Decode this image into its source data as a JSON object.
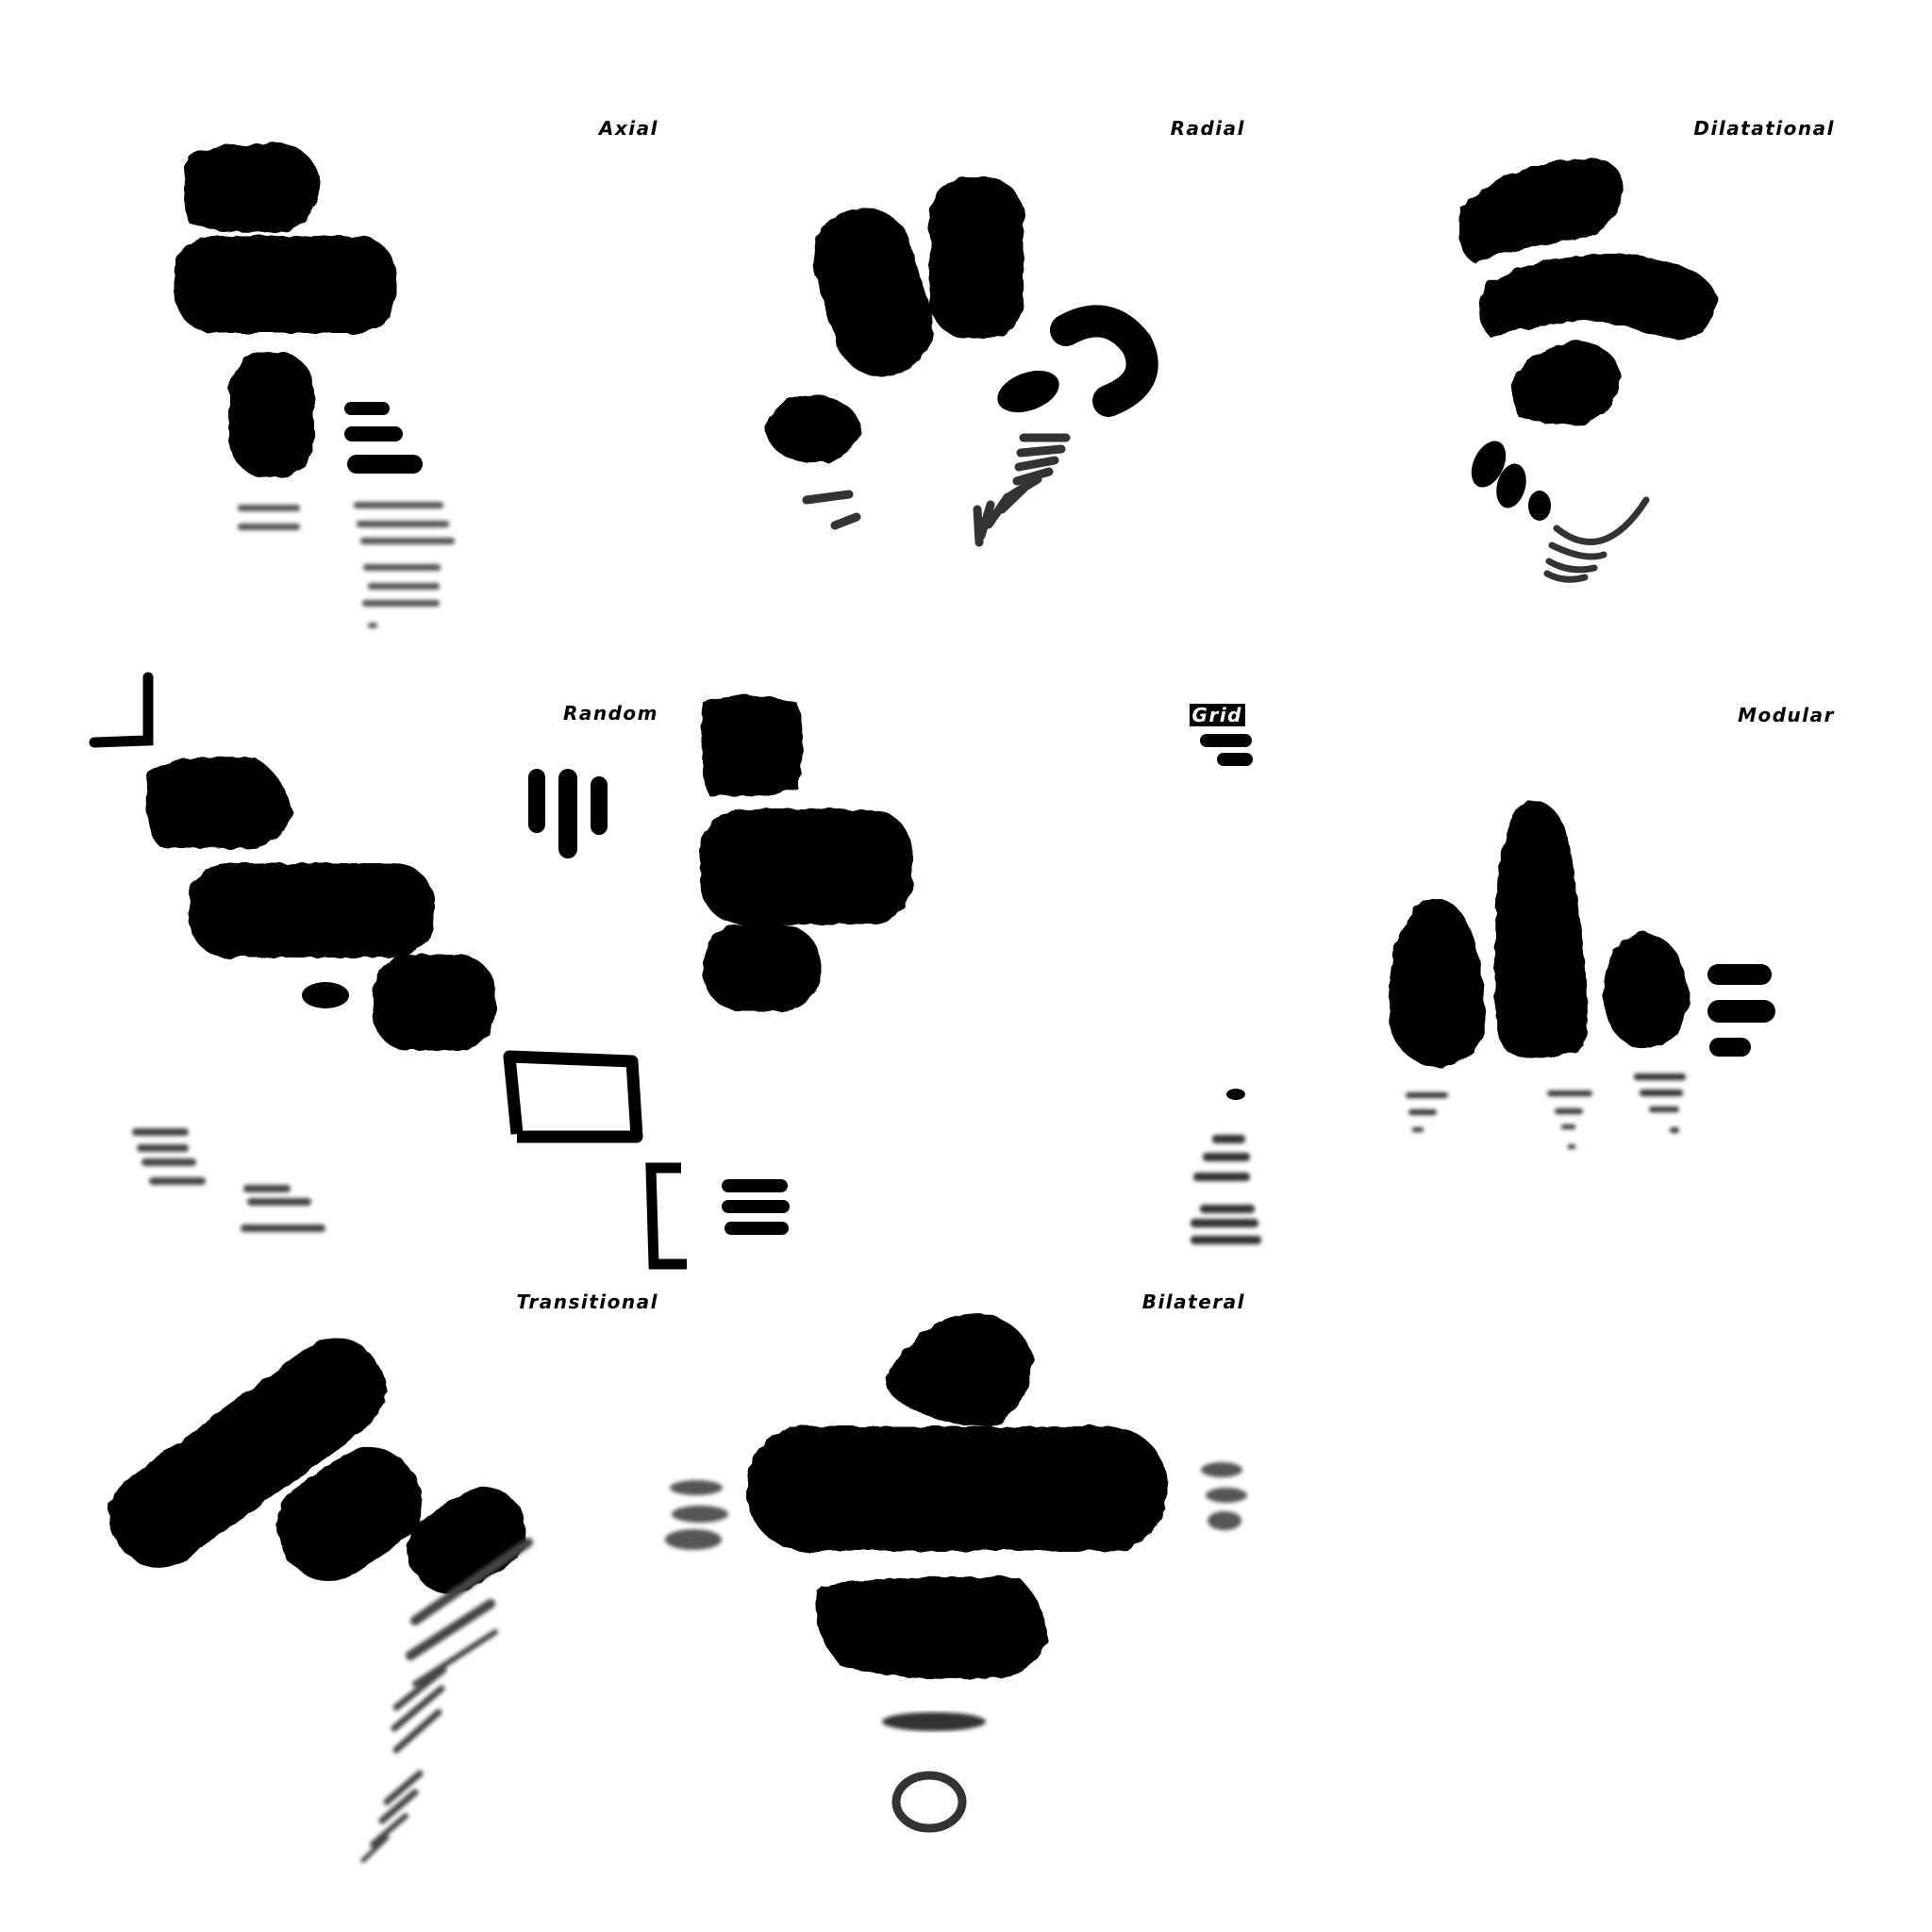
{
  "panels": [
    {
      "label": "Axial"
    },
    {
      "label": "Radial"
    },
    {
      "label": "Dilatational"
    },
    {
      "label": "Random"
    },
    {
      "label": "Grid"
    },
    {
      "label": "Modular"
    },
    {
      "label": "Transitional"
    },
    {
      "label": "Bilateral"
    }
  ],
  "colors": {
    "background": "#ffffff",
    "ink": "#000000",
    "faded_ink": "#555555"
  }
}
